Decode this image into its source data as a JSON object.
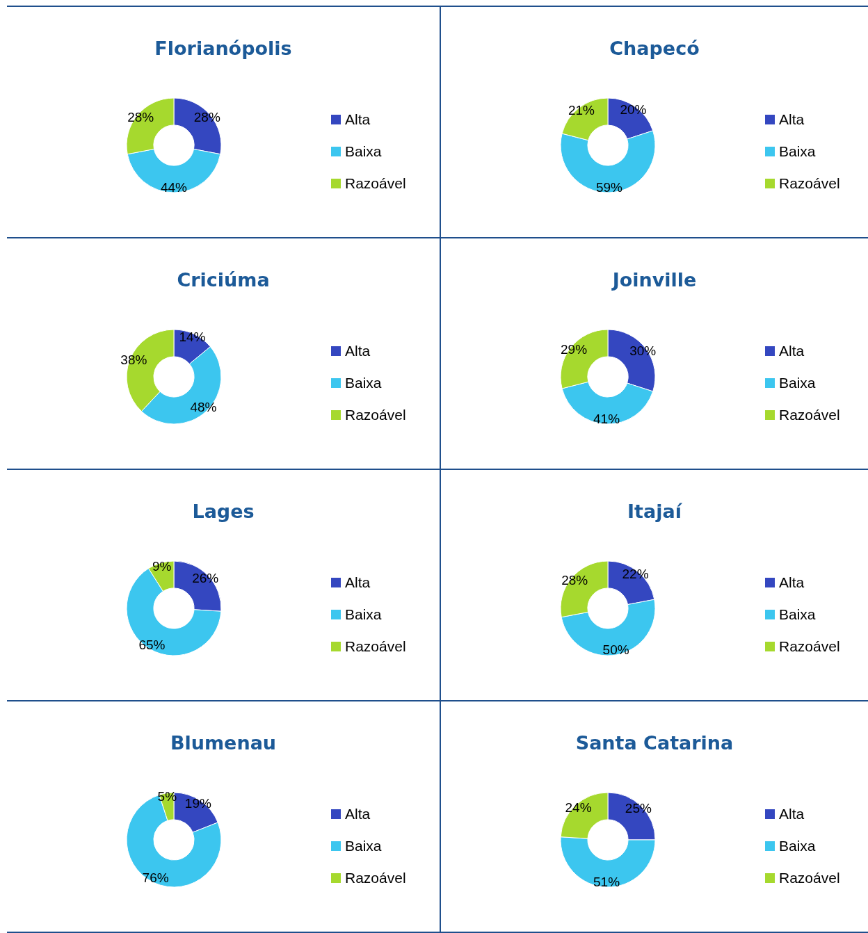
{
  "chart_data": [
    {
      "type": "donut",
      "title": "Florianópolis",
      "categories": [
        "Alta",
        "Baixa",
        "Razoável"
      ],
      "values": [
        28,
        44,
        28
      ],
      "value_labels": [
        "28%",
        "44%",
        "28%"
      ],
      "colors": [
        "#3447c0",
        "#3cc6ef",
        "#a6d92e"
      ],
      "legend": "right"
    },
    {
      "type": "donut",
      "title": "Chapecó",
      "categories": [
        "Alta",
        "Baixa",
        "Razoável"
      ],
      "values": [
        20,
        59,
        21
      ],
      "value_labels": [
        "20%",
        "59%",
        "21%"
      ],
      "colors": [
        "#3447c0",
        "#3cc6ef",
        "#a6d92e"
      ],
      "legend": "right"
    },
    {
      "type": "donut",
      "title": "Criciúma",
      "categories": [
        "Alta",
        "Baixa",
        "Razoável"
      ],
      "values": [
        14,
        48,
        38
      ],
      "value_labels": [
        "14%",
        "48%",
        "38%"
      ],
      "colors": [
        "#3447c0",
        "#3cc6ef",
        "#a6d92e"
      ],
      "legend": "right"
    },
    {
      "type": "donut",
      "title": "Joinville",
      "categories": [
        "Alta",
        "Baixa",
        "Razoável"
      ],
      "values": [
        30,
        41,
        29
      ],
      "value_labels": [
        "30%",
        "41%",
        "29%"
      ],
      "colors": [
        "#3447c0",
        "#3cc6ef",
        "#a6d92e"
      ],
      "legend": "right"
    },
    {
      "type": "donut",
      "title": "Lages",
      "categories": [
        "Alta",
        "Baixa",
        "Razoável"
      ],
      "values": [
        26,
        65,
        9
      ],
      "value_labels": [
        "26%",
        "65%",
        "9%"
      ],
      "colors": [
        "#3447c0",
        "#3cc6ef",
        "#a6d92e"
      ],
      "legend": "right"
    },
    {
      "type": "donut",
      "title": "Itajaí",
      "categories": [
        "Alta",
        "Baixa",
        "Razoável"
      ],
      "values": [
        22,
        50,
        28
      ],
      "value_labels": [
        "22%",
        "50%",
        "28%"
      ],
      "colors": [
        "#3447c0",
        "#3cc6ef",
        "#a6d92e"
      ],
      "legend": "right"
    },
    {
      "type": "donut",
      "title": "Blumenau",
      "categories": [
        "Alta",
        "Baixa",
        "Razoável"
      ],
      "values": [
        19,
        76,
        5
      ],
      "value_labels": [
        "19%",
        "76%",
        "5%"
      ],
      "colors": [
        "#3447c0",
        "#3cc6ef",
        "#a6d92e"
      ],
      "legend": "right"
    },
    {
      "type": "donut",
      "title": "Santa Catarina",
      "categories": [
        "Alta",
        "Baixa",
        "Razoável"
      ],
      "values": [
        25,
        51,
        24
      ],
      "value_labels": [
        "25%",
        "51%",
        "24%"
      ],
      "colors": [
        "#3447c0",
        "#3cc6ef",
        "#a6d92e"
      ],
      "legend": "right"
    }
  ]
}
